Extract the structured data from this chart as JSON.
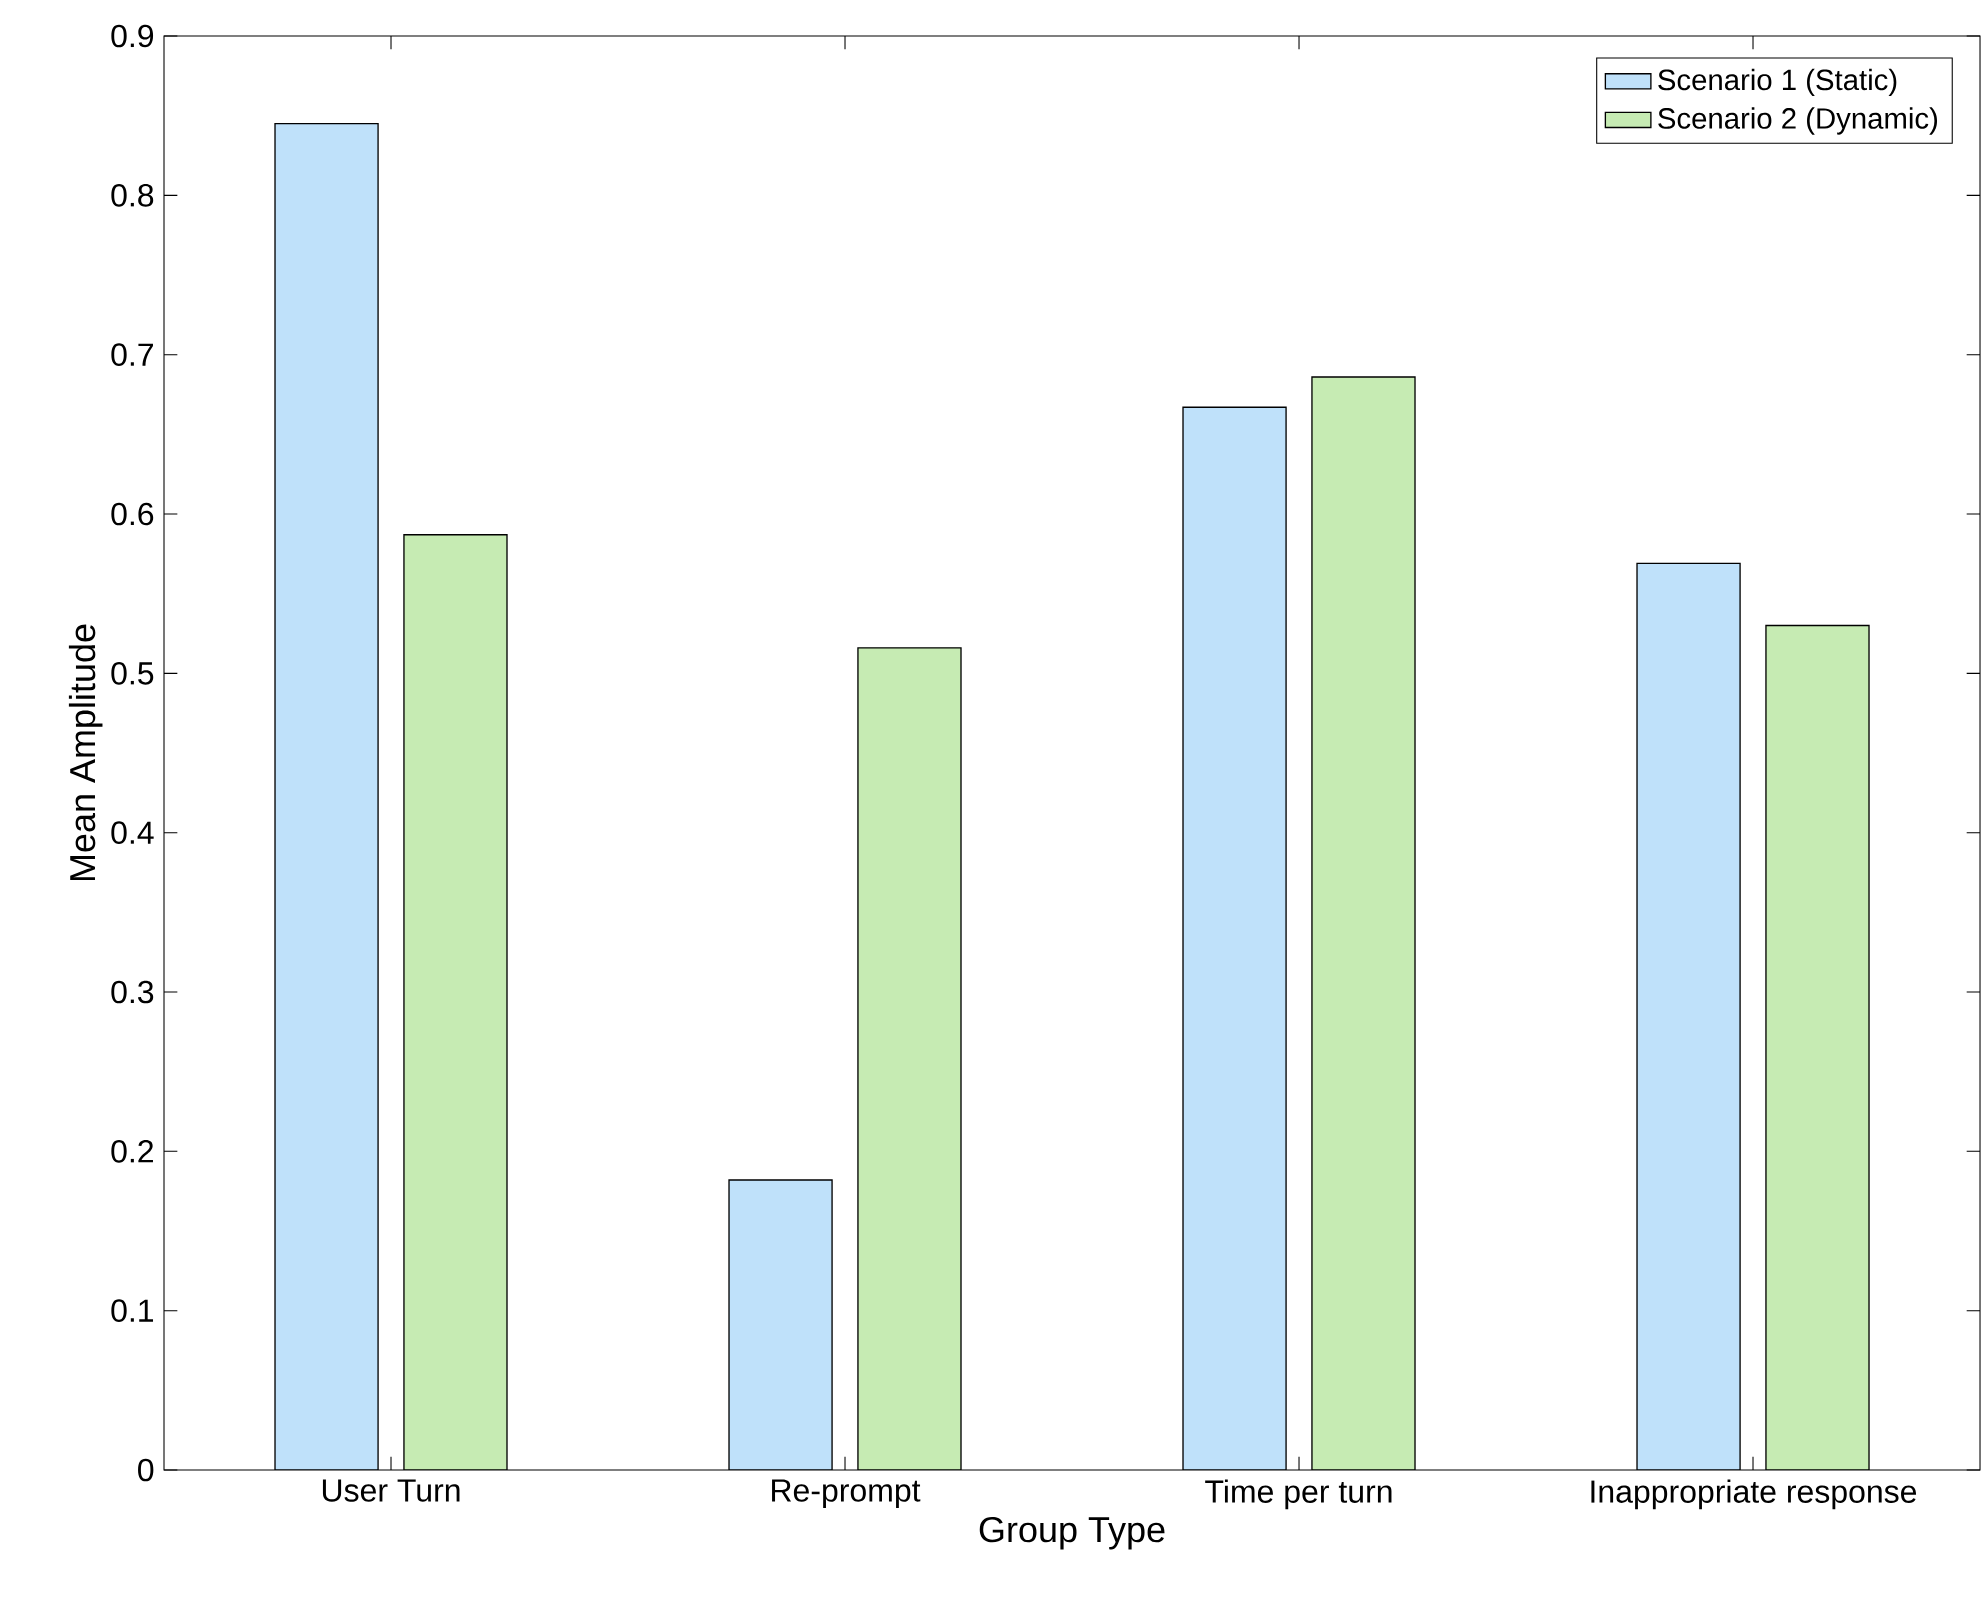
{
  "chart_data": {
    "type": "bar",
    "xlabel": "Group Type",
    "ylabel": "Mean Amplitude",
    "categories": [
      "User Turn",
      "Re-prompt",
      "Time per turn",
      "Inappropriate response"
    ],
    "series": [
      {
        "name": "Scenario 1 (Static)",
        "color": "#bfe1fa",
        "values": [
          0.845,
          0.182,
          0.667,
          0.569
        ]
      },
      {
        "name": "Scenario 2 (Dynamic)",
        "color": "#c6ebb3",
        "values": [
          0.587,
          0.516,
          0.686,
          0.53
        ]
      }
    ],
    "ylim": [
      0,
      0.9
    ],
    "yticks": [
      0,
      0.1,
      0.2,
      0.3,
      0.4,
      0.5,
      0.6,
      0.7,
      0.8,
      0.9
    ],
    "legend": "top right",
    "grid": false
  }
}
